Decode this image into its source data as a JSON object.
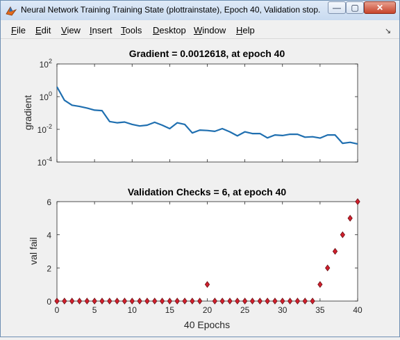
{
  "window": {
    "title": "Neural Network Training Training State (plottrainstate), Epoch 40, Validation stop.",
    "buttons": {
      "minimize": "—",
      "maximize": "▢",
      "close": "✕"
    }
  },
  "menu": [
    {
      "u": "F",
      "rest": "ile"
    },
    {
      "u": "E",
      "rest": "dit"
    },
    {
      "u": "V",
      "rest": "iew"
    },
    {
      "u": "I",
      "rest": "nsert"
    },
    {
      "u": "T",
      "rest": "ools"
    },
    {
      "u": "D",
      "rest": "esktop"
    },
    {
      "u": "W",
      "rest": "indow"
    },
    {
      "u": "H",
      "rest": "elp"
    }
  ],
  "colors": {
    "line": "#1f6fb0",
    "marker_fill": "#d11f2c",
    "marker_edge": "#6b0f15"
  },
  "chart_data": [
    {
      "type": "line",
      "title": "Gradient = 0.0012618, at epoch 40",
      "xlabel": "",
      "ylabel": "gradient",
      "yscale": "log",
      "ylim": [
        0.0001,
        100
      ],
      "xlim": [
        0,
        40
      ],
      "ytick_labels": [
        "10^2",
        "10^0",
        "10^-2",
        "10^-4"
      ],
      "x": [
        0,
        1,
        2,
        3,
        4,
        5,
        6,
        7,
        8,
        9,
        10,
        11,
        12,
        13,
        14,
        15,
        16,
        17,
        18,
        19,
        20,
        21,
        22,
        23,
        24,
        25,
        26,
        27,
        28,
        29,
        30,
        31,
        32,
        33,
        34,
        35,
        36,
        37,
        38,
        39,
        40
      ],
      "values": [
        4.0,
        0.6,
        0.3,
        0.25,
        0.2,
        0.15,
        0.14,
        0.03,
        0.025,
        0.028,
        0.02,
        0.016,
        0.018,
        0.027,
        0.018,
        0.011,
        0.025,
        0.02,
        0.006,
        0.009,
        0.0085,
        0.0075,
        0.011,
        0.007,
        0.004,
        0.007,
        0.0055,
        0.0055,
        0.003,
        0.0045,
        0.0042,
        0.005,
        0.005,
        0.0033,
        0.0035,
        0.0029,
        0.0045,
        0.0045,
        0.0014,
        0.0016,
        0.0012618
      ]
    },
    {
      "type": "scatter",
      "title": "Validation Checks = 6, at epoch 40",
      "xlabel": "40 Epochs",
      "ylabel": "val fail",
      "xlim": [
        0,
        40
      ],
      "ylim": [
        0,
        6
      ],
      "xticks": [
        0,
        5,
        10,
        15,
        20,
        25,
        30,
        35,
        40
      ],
      "yticks": [
        0,
        2,
        4,
        6
      ],
      "x": [
        0,
        1,
        2,
        3,
        4,
        5,
        6,
        7,
        8,
        9,
        10,
        11,
        12,
        13,
        14,
        15,
        16,
        17,
        18,
        19,
        20,
        21,
        22,
        23,
        24,
        25,
        26,
        27,
        28,
        29,
        30,
        31,
        32,
        33,
        34,
        35,
        36,
        37,
        38,
        39,
        40
      ],
      "values": [
        0,
        0,
        0,
        0,
        0,
        0,
        0,
        0,
        0,
        0,
        0,
        0,
        0,
        0,
        0,
        0,
        0,
        0,
        0,
        0,
        1,
        0,
        0,
        0,
        0,
        0,
        0,
        0,
        0,
        0,
        0,
        0,
        0,
        0,
        0,
        1,
        2,
        3,
        4,
        5,
        6
      ]
    }
  ]
}
